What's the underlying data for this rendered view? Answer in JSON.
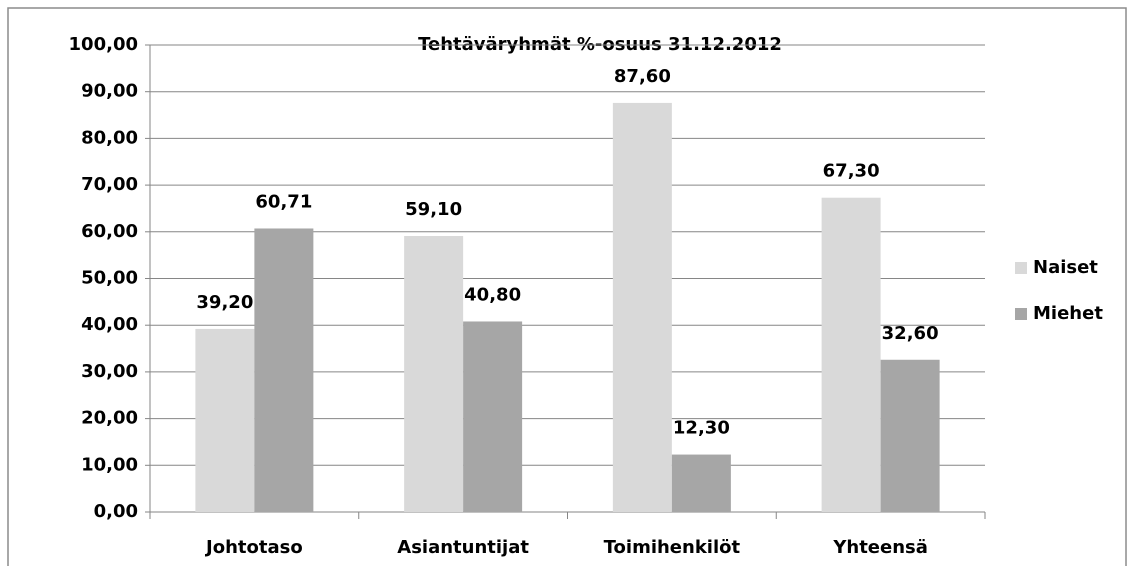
{
  "chart_data": {
    "type": "bar",
    "title": "Tehtäväryhmät  %-osuus 31.12.2012",
    "categories": [
      "Johtotaso",
      "Asiantuntijat",
      "Toimihenkilöt",
      "Yhteensä"
    ],
    "series": [
      {
        "name": "Naiset",
        "color": "#d9d9d9",
        "values": [
          39.2,
          59.1,
          87.6,
          67.3
        ],
        "value_labels": [
          "39,20",
          "59,10",
          "87,60",
          "67,30"
        ]
      },
      {
        "name": "Miehet",
        "color": "#a6a6a6",
        "values": [
          60.71,
          40.8,
          12.3,
          32.6
        ],
        "value_labels": [
          "60,71",
          "40,80",
          "12,30",
          "32,60"
        ]
      }
    ],
    "ylim": [
      0,
      100
    ],
    "yticks": [
      {
        "value": 0,
        "label": "0,00"
      },
      {
        "value": 10,
        "label": "10,00"
      },
      {
        "value": 20,
        "label": "20,00"
      },
      {
        "value": 30,
        "label": "30,00"
      },
      {
        "value": 40,
        "label": "40,00"
      },
      {
        "value": 50,
        "label": "50,00"
      },
      {
        "value": 60,
        "label": "60,00"
      },
      {
        "value": 70,
        "label": "70,00"
      },
      {
        "value": 80,
        "label": "80,00"
      },
      {
        "value": 90,
        "label": "90,00"
      },
      {
        "value": 100,
        "label": "100,00"
      }
    ],
    "grid": true,
    "legend": "right"
  }
}
